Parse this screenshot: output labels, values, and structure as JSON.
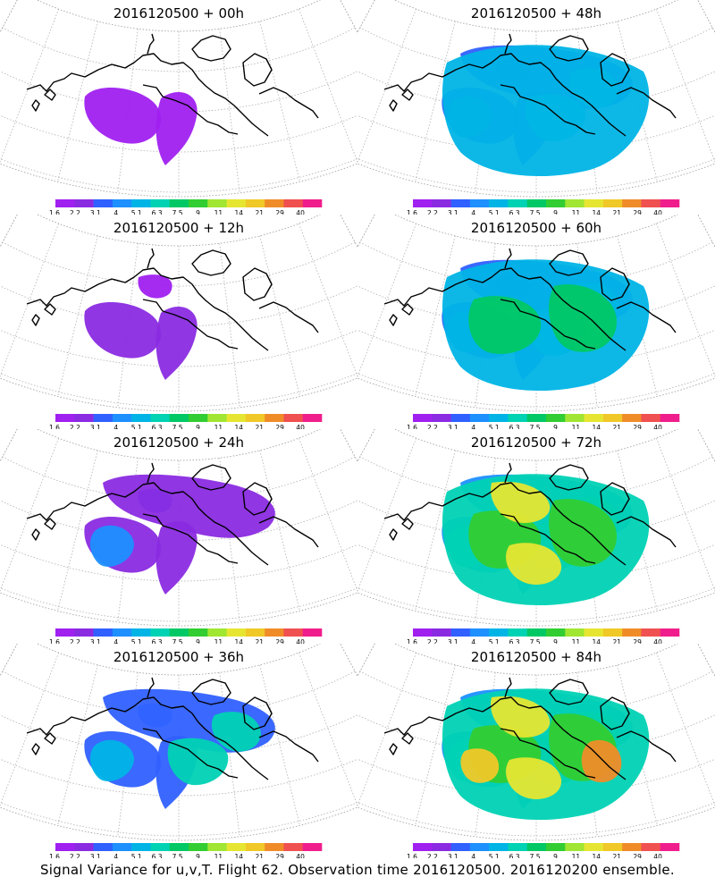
{
  "panels": [
    {
      "title": "2016120500 + 00h",
      "level": 0
    },
    {
      "title": "2016120500 + 48h",
      "level": 4
    },
    {
      "title": "2016120500 + 12h",
      "level": 1
    },
    {
      "title": "2016120500 + 60h",
      "level": 5
    },
    {
      "title": "2016120500 + 24h",
      "level": 2
    },
    {
      "title": "2016120500 + 72h",
      "level": 6
    },
    {
      "title": "2016120500 + 36h",
      "level": 3
    },
    {
      "title": "2016120500 + 84h",
      "level": 7
    }
  ],
  "colorbar": {
    "labels": [
      "1.6",
      "2.2",
      "3.1",
      "4",
      "5.1",
      "6.3",
      "7.5",
      "9",
      "11",
      "14",
      "21",
      "29",
      "40"
    ],
    "colors": [
      "#a020f0",
      "#8a2be2",
      "#3060ff",
      "#1e90ff",
      "#00b4e6",
      "#00d2b4",
      "#00c864",
      "#32cd32",
      "#a0e632",
      "#e6e632",
      "#f0c828",
      "#f08c28",
      "#f05050",
      "#f01e8c"
    ]
  },
  "footer": "Signal Variance for u,v,T. Flight 62. Observation time 2016120500. 2016120200 ensemble."
}
